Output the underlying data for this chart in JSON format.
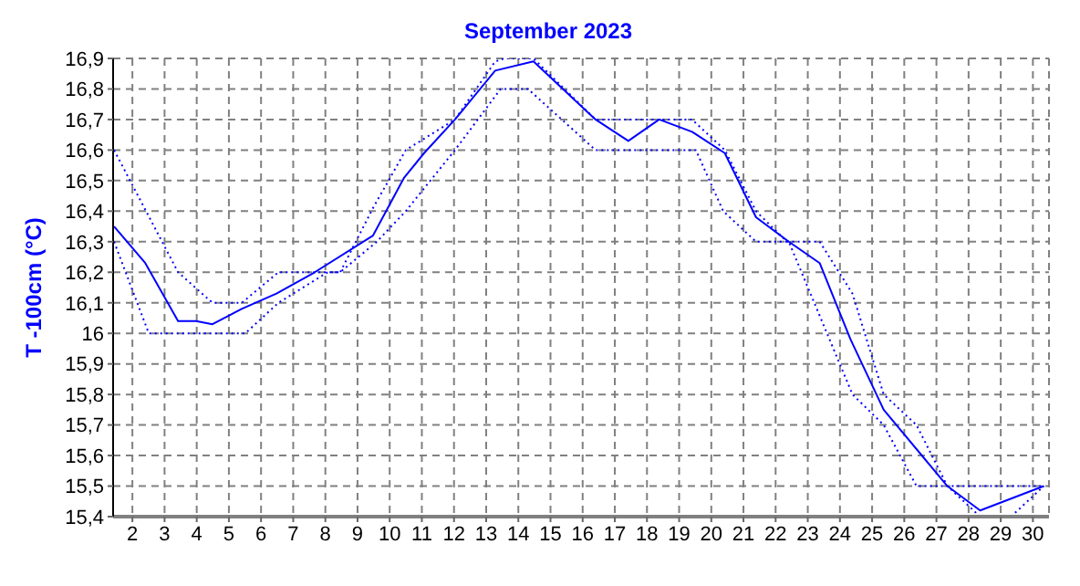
{
  "chart_data": {
    "type": "line",
    "title": "September 2023",
    "ylabel": "T -100cm (°C)",
    "xlim": [
      1.4,
      30.5
    ],
    "xticks": [
      2,
      3,
      4,
      5,
      6,
      7,
      8,
      9,
      10,
      11,
      12,
      13,
      14,
      15,
      16,
      17,
      18,
      19,
      20,
      21,
      22,
      23,
      24,
      25,
      26,
      27,
      28,
      29,
      30
    ],
    "ylim": [
      15.4,
      16.9
    ],
    "yticks": [
      {
        "value": 15.4,
        "label": "15,4"
      },
      {
        "value": 15.5,
        "label": "15,5"
      },
      {
        "value": 15.6,
        "label": "15,6"
      },
      {
        "value": 15.7,
        "label": "15,7"
      },
      {
        "value": 15.8,
        "label": "15,8"
      },
      {
        "value": 15.9,
        "label": "15,9"
      },
      {
        "value": 16,
        "label": "16"
      },
      {
        "value": 16.1,
        "label": "16,1"
      },
      {
        "value": 16.2,
        "label": "16,2"
      },
      {
        "value": 16.3,
        "label": "16,3"
      },
      {
        "value": 16.4,
        "label": "16,4"
      },
      {
        "value": 16.5,
        "label": "16,5"
      },
      {
        "value": 16.6,
        "label": "16,6"
      },
      {
        "value": 16.7,
        "label": "16,7"
      },
      {
        "value": 16.8,
        "label": "16,8"
      },
      {
        "value": 16.9,
        "label": "16,9"
      }
    ],
    "grid": true,
    "marker": "none",
    "series": [
      {
        "color": "#0000ff",
        "line_style": "solid",
        "x": [
          1.43,
          2.4,
          3.42,
          3.98,
          4.49,
          5.4,
          6.48,
          7.67,
          9.48,
          10.45,
          11.07,
          12.03,
          13.28,
          14.47,
          16.4,
          17.42,
          18.38,
          19.4,
          20.42,
          21.39,
          22.41,
          23.37,
          24.33,
          25.36,
          27.34,
          28.36,
          30.34
        ],
        "values": [
          16.35,
          16.23,
          16.04,
          16.04,
          16.03,
          16.08,
          16.13,
          16.2,
          16.32,
          16.51,
          16.59,
          16.7,
          16.86,
          16.89,
          16.7,
          16.63,
          16.7,
          16.66,
          16.59,
          16.38,
          16.3,
          16.23,
          15.98,
          15.75,
          15.5,
          15.42,
          15.5
        ]
      },
      {
        "color": "#0000ff",
        "line_style": "dotted",
        "x": [
          1.43,
          3.42,
          4.49,
          5.4,
          6.54,
          8.46,
          9.48,
          10.5,
          12.03,
          13.28,
          13.56,
          14.47,
          16.4,
          19.4,
          20.42,
          21.39,
          22.35,
          23.37,
          24.39,
          25.36,
          26.38,
          27.34,
          30.34
        ],
        "values": [
          16.6,
          16.2,
          16.1,
          16.1,
          16.2,
          16.2,
          16.41,
          16.6,
          16.7,
          16.89,
          16.9,
          16.9,
          16.7,
          16.7,
          16.6,
          16.4,
          16.3,
          16.3,
          16.13,
          15.8,
          15.7,
          15.5,
          15.5
        ]
      },
      {
        "color": "#0000ff",
        "line_style": "dotted",
        "x": [
          1.43,
          2.51,
          5.51,
          6.54,
          8.07,
          8.46,
          9.6,
          10.5,
          12.03,
          13.45,
          14.3,
          16.4,
          19.52,
          20.37,
          21.39,
          22.41,
          24.39,
          25.36,
          26.38,
          27.34,
          28.36,
          29.32,
          30.34
        ],
        "values": [
          16.3,
          16.0,
          16.0,
          16.1,
          16.2,
          16.2,
          16.3,
          16.4,
          16.6,
          16.8,
          16.8,
          16.6,
          16.6,
          16.4,
          16.3,
          16.3,
          15.8,
          15.7,
          15.5,
          15.5,
          15.4,
          15.4,
          15.5
        ]
      }
    ]
  }
}
